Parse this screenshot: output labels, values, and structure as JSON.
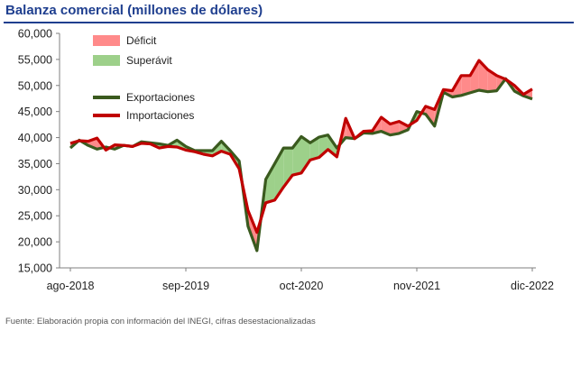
{
  "title": "Balanza comercial (millones de dólares)",
  "source": "Fuente: Elaboración propia con información del INEGI, cifras desestacionalizadas",
  "colors": {
    "exports": "#3a5a1e",
    "imports": "#c00000",
    "deficit_fill": "#ff8a8a",
    "surplus_fill": "#9dd08a",
    "axis": "#7f7f7f",
    "title": "#1f3f8f"
  },
  "chart_data": {
    "type": "line",
    "title": "Balanza comercial (millones de dólares)",
    "ylim": [
      15000,
      60000
    ],
    "y_ticks": [
      "15,000",
      "20,000",
      "25,000",
      "30,000",
      "35,000",
      "40,000",
      "45,000",
      "50,000",
      "55,000",
      "60,000"
    ],
    "y_tick_values": [
      15000,
      20000,
      25000,
      30000,
      35000,
      40000,
      45000,
      50000,
      55000,
      60000
    ],
    "x_start": "2018-08",
    "x_end": "2022-12",
    "x_ticks": [
      "ago-2018",
      "sep-2019",
      "oct-2020",
      "nov-2021",
      "dic-2022"
    ],
    "x_tick_indices": [
      0,
      13,
      26,
      39,
      52
    ],
    "legend": {
      "deficit": "Déficit",
      "surplus": "Superávit",
      "exports": "Exportaciones",
      "imports": "Importaciones",
      "placement": "top-left"
    },
    "series": [
      {
        "name": "Exportaciones",
        "values": [
          38000,
          39500,
          38500,
          37800,
          38200,
          37800,
          38500,
          38300,
          39200,
          39000,
          38800,
          38500,
          39500,
          38300,
          37500,
          37500,
          37500,
          39300,
          37500,
          35500,
          23000,
          18300,
          32000,
          35000,
          38000,
          38000,
          40200,
          39000,
          40100,
          40500,
          38000,
          40000,
          39800,
          40900,
          40800,
          41200,
          40500,
          40800,
          41500,
          45000,
          44500,
          42200,
          48700,
          47800,
          48100,
          48600,
          49100,
          48800,
          49000,
          51300,
          48900,
          48000,
          47400
        ]
      },
      {
        "name": "Importaciones",
        "values": [
          38900,
          39400,
          39300,
          39900,
          37600,
          38600,
          38500,
          38300,
          38900,
          38800,
          38000,
          38300,
          38200,
          37600,
          37300,
          36800,
          36500,
          37400,
          36800,
          34000,
          26000,
          21800,
          27500,
          28000,
          30500,
          32800,
          33200,
          35700,
          36200,
          37700,
          36300,
          43700,
          39800,
          41200,
          41300,
          43900,
          42600,
          43100,
          42200,
          43300,
          46000,
          45400,
          49200,
          49000,
          51900,
          51900,
          54800,
          53000,
          51900,
          51200,
          50000,
          48300,
          49300
        ]
      }
    ]
  }
}
